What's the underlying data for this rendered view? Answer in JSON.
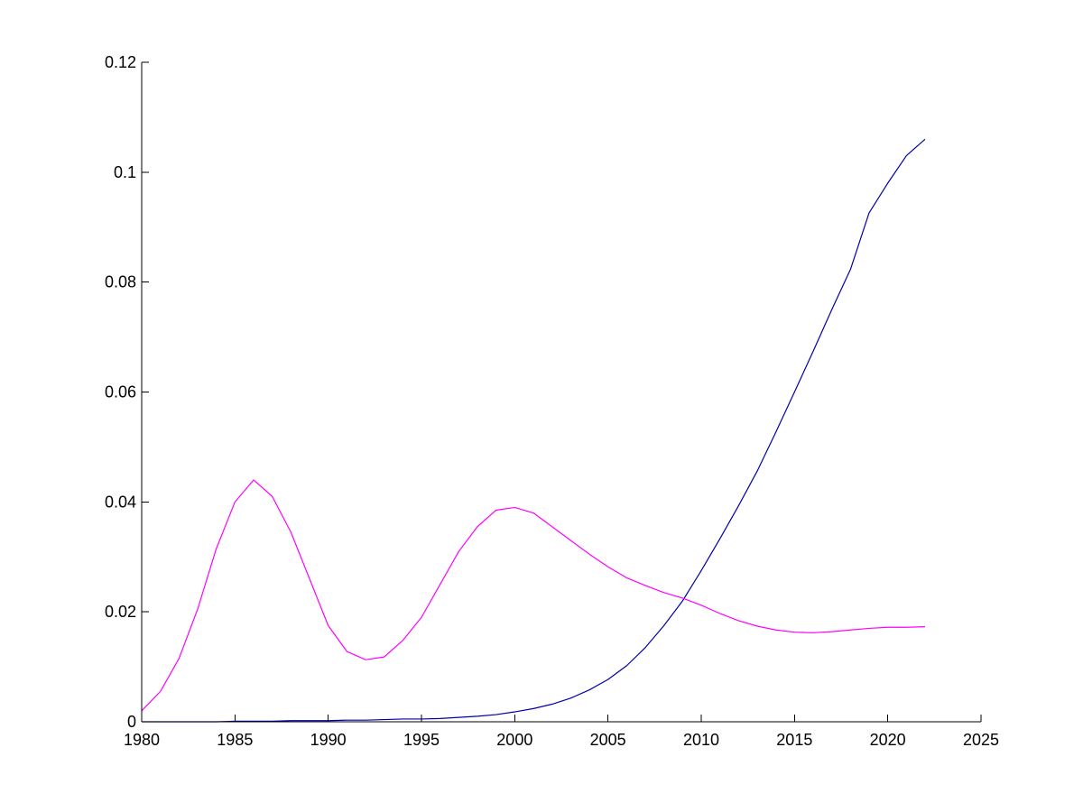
{
  "chart_data": {
    "type": "line",
    "title": "",
    "xlabel": "",
    "ylabel": "",
    "xlim": [
      1980,
      2025
    ],
    "ylim": [
      0,
      0.12
    ],
    "x_ticks": [
      1980,
      1985,
      1990,
      1995,
      2000,
      2005,
      2010,
      2015,
      2020,
      2025
    ],
    "x_tick_labels": [
      "1980",
      "1985",
      "1990",
      "1995",
      "2000",
      "2005",
      "2010",
      "2015",
      "2020",
      "2025"
    ],
    "y_ticks": [
      0,
      0.02,
      0.04,
      0.06,
      0.08,
      0.1,
      0.12
    ],
    "y_tick_labels": [
      "0",
      "0.02",
      "0.04",
      "0.06",
      "0.08",
      "0.1",
      "0.12"
    ],
    "grid": false,
    "legend": "none",
    "series": [
      {
        "color": "#0000aa",
        "x": [
          1980,
          1981,
          1982,
          1983,
          1984,
          1985,
          1986,
          1987,
          1988,
          1989,
          1990,
          1991,
          1992,
          1993,
          1994,
          1995,
          1996,
          1997,
          1998,
          1999,
          2000,
          2001,
          2002,
          2003,
          2004,
          2005,
          2006,
          2007,
          2008,
          2009,
          2010,
          2011,
          2012,
          2013,
          2014,
          2015,
          2016,
          2017,
          2018,
          2019,
          2020,
          2021,
          2022
        ],
        "y": [
          0.0,
          0.0,
          0.0,
          0.0,
          0.0,
          0.0001,
          0.0001,
          0.0001,
          0.0002,
          0.0002,
          0.0002,
          0.0003,
          0.0003,
          0.0004,
          0.0005,
          0.0005,
          0.0006,
          0.0008,
          0.001,
          0.0013,
          0.0018,
          0.0024,
          0.0032,
          0.0043,
          0.0058,
          0.0077,
          0.0102,
          0.0135,
          0.0175,
          0.022,
          0.0275,
          0.0333,
          0.0393,
          0.0456,
          0.0527,
          0.06,
          0.0674,
          0.075,
          0.0823,
          0.0926,
          0.098,
          0.103,
          0.106
        ]
      },
      {
        "color": "#ff00ff",
        "x": [
          1980,
          1981,
          1982,
          1983,
          1984,
          1985,
          1986,
          1987,
          1988,
          1989,
          1990,
          1991,
          1992,
          1993,
          1994,
          1995,
          1996,
          1997,
          1998,
          1999,
          2000,
          2001,
          2002,
          2003,
          2004,
          2005,
          2006,
          2007,
          2008,
          2009,
          2010,
          2011,
          2012,
          2013,
          2014,
          2015,
          2016,
          2017,
          2018,
          2019,
          2020,
          2021,
          2022
        ],
        "y": [
          0.002,
          0.0055,
          0.0115,
          0.0205,
          0.0315,
          0.04,
          0.044,
          0.041,
          0.0345,
          0.026,
          0.0175,
          0.0128,
          0.0113,
          0.0118,
          0.0148,
          0.019,
          0.025,
          0.031,
          0.0355,
          0.0385,
          0.039,
          0.038,
          0.0355,
          0.033,
          0.0305,
          0.0282,
          0.0262,
          0.0248,
          0.0235,
          0.0225,
          0.0212,
          0.0197,
          0.0184,
          0.0174,
          0.0167,
          0.0163,
          0.0162,
          0.0164,
          0.0167,
          0.017,
          0.0172,
          0.0172,
          0.0173
        ]
      }
    ]
  }
}
